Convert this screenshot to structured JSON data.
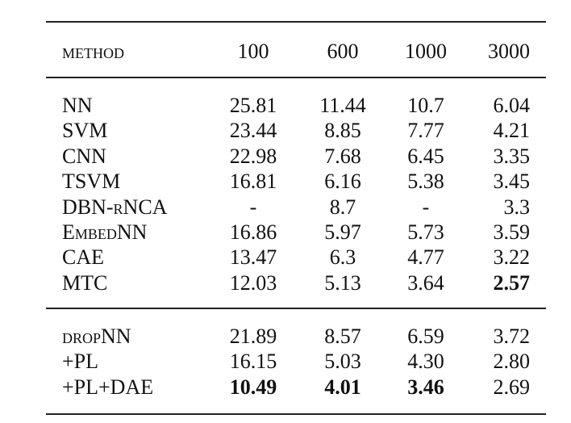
{
  "table": {
    "header": [
      "method",
      "100",
      "600",
      "1000",
      "3000"
    ],
    "sections": [
      {
        "rows": [
          [
            "NN",
            "25.81",
            "11.44",
            "10.7",
            "6.04"
          ],
          [
            "SVM",
            "23.44",
            "8.85",
            "7.77",
            "4.21"
          ],
          [
            "CNN",
            "22.98",
            "7.68",
            "6.45",
            "3.35"
          ],
          [
            "TSVM",
            "16.81",
            "6.16",
            "5.38",
            "3.45"
          ],
          [
            "DBN-rNCA",
            "-",
            "8.7",
            "-",
            "3.3"
          ],
          [
            "EmbedNN",
            "16.86",
            "5.97",
            "5.73",
            "3.59"
          ],
          [
            "CAE",
            "13.47",
            "6.3",
            "4.77",
            "3.22"
          ],
          [
            "MTC",
            "12.03",
            "5.13",
            "3.64",
            "2.57"
          ]
        ],
        "bold": [
          [
            7,
            4
          ]
        ]
      },
      {
        "rows": [
          [
            "dropNN",
            "21.89",
            "8.57",
            "6.59",
            "3.72"
          ],
          [
            "+PL",
            "16.15",
            "5.03",
            "4.30",
            "2.80"
          ],
          [
            "+PL+DAE",
            "10.49",
            "4.01",
            "3.46",
            "2.69"
          ]
        ],
        "bold": [
          [
            2,
            1
          ],
          [
            2,
            2
          ],
          [
            2,
            3
          ]
        ]
      }
    ]
  }
}
